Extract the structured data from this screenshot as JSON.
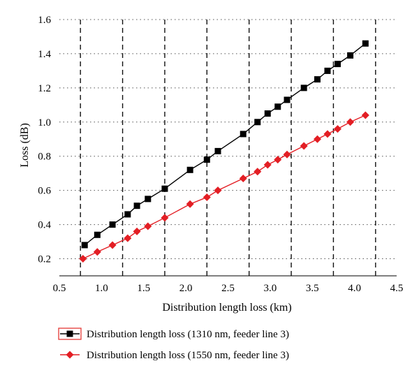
{
  "chart_data": {
    "type": "line",
    "title": "",
    "xlabel": "Distribution length loss (km)",
    "ylabel": "Loss (dB)",
    "xlim": [
      0.5,
      4.5
    ],
    "ylim": [
      0.1,
      1.6
    ],
    "xticks": [
      0.5,
      1.0,
      1.5,
      2.0,
      2.5,
      3.0,
      3.5,
      4.0,
      4.5
    ],
    "xtick_labels": [
      "0.5",
      "1.0",
      "1.5",
      "2.0",
      "2.5",
      "3.0",
      "3.5",
      "4.0",
      "4.5"
    ],
    "yticks": [
      0.2,
      0.4,
      0.6,
      0.8,
      1.0,
      1.2,
      1.4,
      1.6
    ],
    "ytick_labels": [
      "0.2",
      "0.4",
      "0.6",
      "0.8",
      "1.0",
      "1.2",
      "1.4",
      "1.6"
    ],
    "horizontal_grid": "dotted",
    "vertical_reference_lines": [
      0.75,
      1.25,
      1.75,
      2.25,
      2.75,
      3.25,
      3.75,
      4.25
    ],
    "legend_position": "bottom",
    "series": [
      {
        "name": "Distribution length loss (1310 nm, feeder line 3)",
        "color": "#000000",
        "marker": "square",
        "legend_border_color": "#e53935",
        "x": [
          0.8,
          0.95,
          1.13,
          1.31,
          1.42,
          1.55,
          1.75,
          2.05,
          2.25,
          2.38,
          2.68,
          2.85,
          2.97,
          3.09,
          3.2,
          3.4,
          3.56,
          3.68,
          3.8,
          3.95,
          4.13
        ],
        "y": [
          0.28,
          0.34,
          0.4,
          0.46,
          0.51,
          0.55,
          0.61,
          0.72,
          0.78,
          0.83,
          0.93,
          1.0,
          1.05,
          1.09,
          1.13,
          1.2,
          1.25,
          1.3,
          1.34,
          1.39,
          1.46
        ]
      },
      {
        "name": "Distribution length loss (1550 nm, feeder line 3)",
        "color": "#e31e24",
        "marker": "diamond",
        "x": [
          0.78,
          0.95,
          1.13,
          1.31,
          1.42,
          1.55,
          1.75,
          2.05,
          2.25,
          2.38,
          2.68,
          2.85,
          2.97,
          3.09,
          3.2,
          3.4,
          3.56,
          3.68,
          3.8,
          3.95,
          4.13
        ],
        "y": [
          0.2,
          0.24,
          0.28,
          0.32,
          0.36,
          0.39,
          0.44,
          0.52,
          0.56,
          0.6,
          0.67,
          0.71,
          0.75,
          0.78,
          0.81,
          0.86,
          0.9,
          0.93,
          0.96,
          1.0,
          1.04
        ]
      }
    ]
  }
}
